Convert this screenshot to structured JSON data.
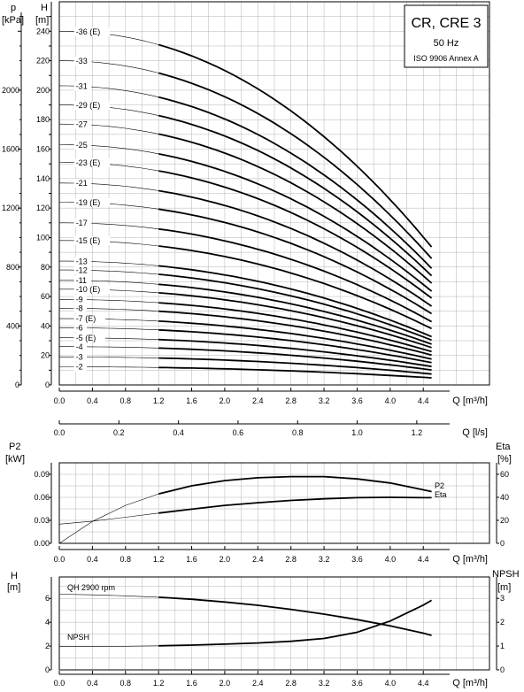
{
  "chart_data": [
    {
      "name": "qh",
      "type": "line",
      "title_box": {
        "line1": "CR, CRE 3",
        "line2": "50 Hz",
        "line3": "ISO 9906 Annex A"
      },
      "y_left": {
        "symbol": "p",
        "unit": "[kPa]",
        "range": [
          0,
          2600
        ],
        "ticks": [
          0,
          400,
          800,
          1200,
          1600,
          2000
        ]
      },
      "y_right": {
        "symbol": "H",
        "unit": "[m]",
        "range": [
          0,
          260
        ],
        "ticks": [
          0,
          20,
          40,
          60,
          80,
          100,
          120,
          140,
          160,
          180,
          200,
          220,
          240
        ]
      },
      "x": {
        "label": "Q [m³/h]",
        "range": [
          0,
          5.2
        ],
        "ticks": [
          "0.0",
          "0.4",
          "0.8",
          "1.2",
          "1.6",
          "2.0",
          "2.4",
          "2.8",
          "3.2",
          "3.6",
          "4.0",
          "4.4"
        ]
      },
      "x2": {
        "label": "Q [l/s]",
        "range": [
          0,
          1.444
        ],
        "ticks": [
          "0.0",
          "0.2",
          "0.4",
          "0.6",
          "0.8",
          "1.0",
          "1.2"
        ]
      },
      "grid": true,
      "curve_shape": {
        "q_start": 1.2,
        "q_end": 4.5,
        "h_ratio_at_q_end": 0.39
      },
      "series": [
        {
          "name": "-2",
          "shutoff_head": 12.3
        },
        {
          "name": "-3",
          "shutoff_head": 19.0
        },
        {
          "name": "-4",
          "shutoff_head": 26.0
        },
        {
          "name": "-5 (E)",
          "shutoff_head": 32.0
        },
        {
          "name": "-6",
          "shutoff_head": 38.8
        },
        {
          "name": "-7 (E)",
          "shutoff_head": 45.0
        },
        {
          "name": "-8",
          "shutoff_head": 52.0
        },
        {
          "name": "-9",
          "shutoff_head": 58.0
        },
        {
          "name": "-10 (E)",
          "shutoff_head": 65.0
        },
        {
          "name": "-11",
          "shutoff_head": 71.0
        },
        {
          "name": "-12",
          "shutoff_head": 78.0
        },
        {
          "name": "-13",
          "shutoff_head": 84.0
        },
        {
          "name": "-15 (E)",
          "shutoff_head": 98.0
        },
        {
          "name": "-17",
          "shutoff_head": 110.0
        },
        {
          "name": "-19 (E)",
          "shutoff_head": 124.0
        },
        {
          "name": "-21",
          "shutoff_head": 137.0
        },
        {
          "name": "-23 (E)",
          "shutoff_head": 151.0
        },
        {
          "name": "-25",
          "shutoff_head": 163.0
        },
        {
          "name": "-27",
          "shutoff_head": 177.0
        },
        {
          "name": "-29 (E)",
          "shutoff_head": 190.0
        },
        {
          "name": "-31",
          "shutoff_head": 203.0
        },
        {
          "name": "-33",
          "shutoff_head": 220.0
        },
        {
          "name": "-36 (E)",
          "shutoff_head": 240.0
        }
      ]
    },
    {
      "name": "power",
      "type": "line",
      "y_left": {
        "symbol": "P2",
        "unit": "[kW]",
        "range": [
          0,
          0.105
        ],
        "ticks": [
          "0.00",
          "0.03",
          "0.06",
          "0.09"
        ]
      },
      "y_right": {
        "symbol": "Eta",
        "unit": "[%]",
        "range": [
          0,
          70
        ],
        "ticks": [
          0,
          20,
          40,
          60
        ]
      },
      "x": {
        "label": "Q [m³/h]",
        "range": [
          0,
          5.2
        ],
        "ticks": [
          "0.0",
          "0.4",
          "0.8",
          "1.2",
          "1.6",
          "2.0",
          "2.4",
          "2.8",
          "3.2",
          "3.6",
          "4.0",
          "4.4"
        ]
      },
      "grid": true,
      "series": [
        {
          "name": "P2",
          "axis": "left",
          "x": [
            0,
            0.4,
            0.8,
            1.2,
            1.6,
            2.0,
            2.4,
            2.8,
            3.2,
            3.6,
            4.0,
            4.4,
            4.5
          ],
          "values": [
            0.025,
            0.029,
            0.034,
            0.0395,
            0.0445,
            0.0495,
            0.053,
            0.056,
            0.058,
            0.0595,
            0.06,
            0.0595,
            0.0595
          ]
        },
        {
          "name": "Eta",
          "axis": "right",
          "x": [
            0,
            0.4,
            0.8,
            1.2,
            1.6,
            2.0,
            2.4,
            2.8,
            3.2,
            3.6,
            4.0,
            4.4,
            4.5
          ],
          "values": [
            0,
            19,
            33,
            43,
            50,
            54.5,
            57,
            58,
            58,
            56,
            52.5,
            46.5,
            45
          ]
        }
      ]
    },
    {
      "name": "npsh",
      "type": "line",
      "y_left": {
        "symbol": "H",
        "unit": "[m]",
        "range": [
          0,
          7.8
        ],
        "ticks": [
          0,
          2,
          4,
          6
        ]
      },
      "y_right": {
        "symbol": "NPSH",
        "unit": "[m]",
        "range": [
          0,
          3.9
        ],
        "ticks": [
          0,
          1,
          2,
          3
        ]
      },
      "x": {
        "label": "Q [m³/h]",
        "range": [
          0,
          5.2
        ],
        "ticks": [
          "0.0",
          "0.4",
          "0.8",
          "1.2",
          "1.6",
          "2.0",
          "2.4",
          "2.8",
          "3.2",
          "3.6",
          "4.0",
          "4.4"
        ]
      },
      "grid": true,
      "series": [
        {
          "name": "QH 2900 rpm",
          "axis": "left",
          "x": [
            0,
            0.4,
            0.8,
            1.2,
            1.6,
            2.0,
            2.4,
            2.8,
            3.2,
            3.6,
            4.0,
            4.4,
            4.5
          ],
          "values": [
            6.35,
            6.3,
            6.22,
            6.1,
            5.93,
            5.7,
            5.42,
            5.08,
            4.68,
            4.22,
            3.7,
            3.08,
            2.9
          ]
        },
        {
          "name": "NPSH",
          "axis": "right",
          "x": [
            0,
            0.4,
            0.8,
            1.2,
            1.6,
            2.0,
            2.4,
            2.8,
            3.2,
            3.6,
            4.0,
            4.4,
            4.5
          ],
          "values": [
            0.98,
            0.98,
            0.99,
            1.01,
            1.04,
            1.08,
            1.13,
            1.2,
            1.32,
            1.58,
            2.05,
            2.72,
            2.92
          ]
        }
      ]
    }
  ]
}
